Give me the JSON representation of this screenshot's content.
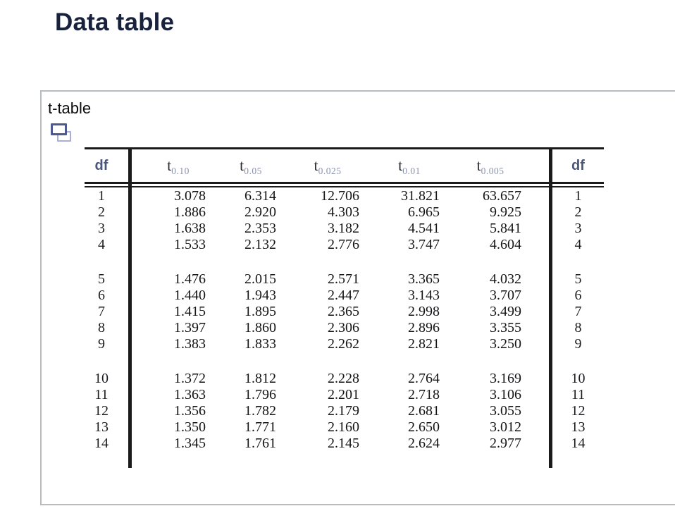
{
  "page": {
    "title": "Data table"
  },
  "panel": {
    "label": "t-table",
    "icon": "copy-icon"
  },
  "colors": {
    "heading": "#18223c",
    "panel_border": "#b9bcbe",
    "table_rule": "#1b1b1b",
    "df_header": "#4a567c",
    "t_subscript": "#8a93ac",
    "copy_icon_front": "#4e598f",
    "copy_icon_back": "#a9aed8"
  },
  "t_table": {
    "df_label_left": "df",
    "df_label_right": "df",
    "t_headers": [
      {
        "base": "t",
        "sub": "0.10"
      },
      {
        "base": "t",
        "sub": "0.05"
      },
      {
        "base": "t",
        "sub": "0.025"
      },
      {
        "base": "t",
        "sub": "0.01"
      },
      {
        "base": "t",
        "sub": "0.005"
      }
    ],
    "groups": [
      {
        "rows": [
          {
            "df": "1",
            "values": [
              "3.078",
              "6.314",
              "12.706",
              "31.821",
              "63.657"
            ]
          },
          {
            "df": "2",
            "values": [
              "1.886",
              "2.920",
              "4.303",
              "6.965",
              "9.925"
            ]
          },
          {
            "df": "3",
            "values": [
              "1.638",
              "2.353",
              "3.182",
              "4.541",
              "5.841"
            ]
          },
          {
            "df": "4",
            "values": [
              "1.533",
              "2.132",
              "2.776",
              "3.747",
              "4.604"
            ]
          }
        ]
      },
      {
        "rows": [
          {
            "df": "5",
            "values": [
              "1.476",
              "2.015",
              "2.571",
              "3.365",
              "4.032"
            ]
          },
          {
            "df": "6",
            "values": [
              "1.440",
              "1.943",
              "2.447",
              "3.143",
              "3.707"
            ]
          },
          {
            "df": "7",
            "values": [
              "1.415",
              "1.895",
              "2.365",
              "2.998",
              "3.499"
            ]
          },
          {
            "df": "8",
            "values": [
              "1.397",
              "1.860",
              "2.306",
              "2.896",
              "3.355"
            ]
          },
          {
            "df": "9",
            "values": [
              "1.383",
              "1.833",
              "2.262",
              "2.821",
              "3.250"
            ]
          }
        ]
      },
      {
        "rows": [
          {
            "df": "10",
            "values": [
              "1.372",
              "1.812",
              "2.228",
              "2.764",
              "3.169"
            ]
          },
          {
            "df": "11",
            "values": [
              "1.363",
              "1.796",
              "2.201",
              "2.718",
              "3.106"
            ]
          },
          {
            "df": "12",
            "values": [
              "1.356",
              "1.782",
              "2.179",
              "2.681",
              "3.055"
            ]
          },
          {
            "df": "13",
            "values": [
              "1.350",
              "1.771",
              "2.160",
              "2.650",
              "3.012"
            ]
          },
          {
            "df": "14",
            "values": [
              "1.345",
              "1.761",
              "2.145",
              "2.624",
              "2.977"
            ]
          }
        ]
      }
    ]
  }
}
